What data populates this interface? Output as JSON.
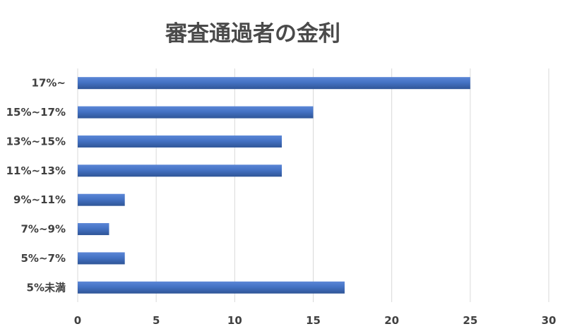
{
  "chart_data": {
    "type": "bar",
    "orientation": "horizontal",
    "title": "審査通過者の金利",
    "xlabel": "",
    "ylabel": "",
    "categories": [
      "17%~",
      "15%~17%",
      "13%~15%",
      "11%~13%",
      "9%~11%",
      "7%~9%",
      "5%~7%",
      "5%未満"
    ],
    "values": [
      25,
      15,
      13,
      13,
      3,
      2,
      3,
      17
    ],
    "xlim": [
      0,
      30
    ],
    "xticks": [
      0,
      5,
      10,
      15,
      20,
      25,
      30
    ],
    "grid": true,
    "legend": "none",
    "bar_color": "#4472c4",
    "bar_color_light": "#5b86d6",
    "bar_color_dark": "#2f5597"
  }
}
